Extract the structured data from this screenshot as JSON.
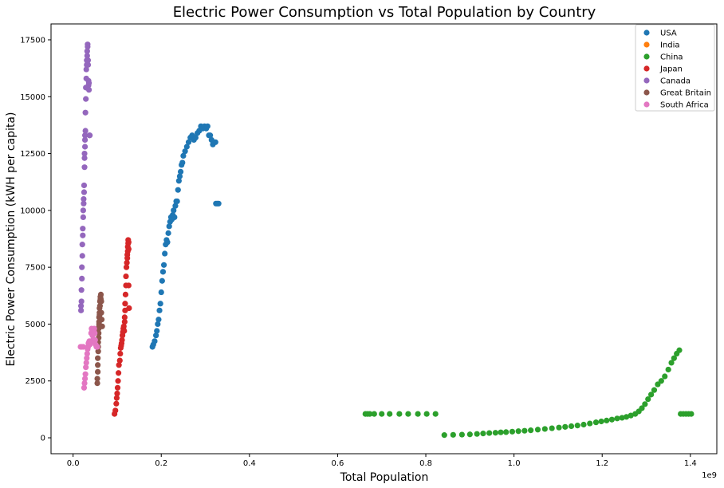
{
  "chart_data": {
    "type": "scatter",
    "title": "Electric Power Consumption vs Total Population by Country",
    "xlabel": "Total Population",
    "ylabel": "Electric Power Consumption (kWH per capita)",
    "x_offset_label": "1e9",
    "xlim": [
      -0.05,
      1.46
    ],
    "ylim": [
      -700,
      18200
    ],
    "xticks": [
      0.0,
      0.2,
      0.4,
      0.6,
      0.8,
      1.0,
      1.2,
      1.4
    ],
    "xtick_labels": [
      "0.0",
      "0.2",
      "0.4",
      "0.6",
      "0.8",
      "1.0",
      "1.2",
      "1.4"
    ],
    "yticks": [
      0,
      2500,
      5000,
      7500,
      10000,
      12500,
      15000,
      17500
    ],
    "ytick_labels": [
      "0",
      "2500",
      "5000",
      "7500",
      "10000",
      "12500",
      "15000",
      "17500"
    ],
    "legend_position": "top-right",
    "grid": false,
    "series": [
      {
        "name": "USA",
        "color": "#1f77b4",
        "points": [
          [
            0.18,
            4000
          ],
          [
            0.182,
            4100
          ],
          [
            0.185,
            4250
          ],
          [
            0.188,
            4500
          ],
          [
            0.19,
            4700
          ],
          [
            0.192,
            5000
          ],
          [
            0.194,
            5200
          ],
          [
            0.196,
            5600
          ],
          [
            0.198,
            5900
          ],
          [
            0.2,
            6400
          ],
          [
            0.202,
            6900
          ],
          [
            0.204,
            7300
          ],
          [
            0.206,
            7600
          ],
          [
            0.208,
            8100
          ],
          [
            0.21,
            8500
          ],
          [
            0.212,
            8700
          ],
          [
            0.214,
            8600
          ],
          [
            0.216,
            9000
          ],
          [
            0.218,
            9300
          ],
          [
            0.22,
            9500
          ],
          [
            0.222,
            9700
          ],
          [
            0.224,
            9600
          ],
          [
            0.226,
            9800
          ],
          [
            0.228,
            10000
          ],
          [
            0.23,
            9700
          ],
          [
            0.232,
            10200
          ],
          [
            0.234,
            10400
          ],
          [
            0.236,
            10400
          ],
          [
            0.238,
            10900
          ],
          [
            0.24,
            11300
          ],
          [
            0.242,
            11500
          ],
          [
            0.244,
            11700
          ],
          [
            0.246,
            12000
          ],
          [
            0.248,
            12100
          ],
          [
            0.25,
            12400
          ],
          [
            0.254,
            12600
          ],
          [
            0.258,
            12800
          ],
          [
            0.262,
            13000
          ],
          [
            0.266,
            13200
          ],
          [
            0.27,
            13300
          ],
          [
            0.274,
            13100
          ],
          [
            0.278,
            13200
          ],
          [
            0.282,
            13400
          ],
          [
            0.286,
            13500
          ],
          [
            0.29,
            13700
          ],
          [
            0.294,
            13600
          ],
          [
            0.298,
            13700
          ],
          [
            0.302,
            13600
          ],
          [
            0.305,
            13700
          ],
          [
            0.308,
            13300
          ],
          [
            0.311,
            13300
          ],
          [
            0.314,
            13100
          ],
          [
            0.317,
            12900
          ],
          [
            0.32,
            13000
          ],
          [
            0.323,
            13000
          ],
          [
            0.324,
            10300
          ],
          [
            0.327,
            10300
          ],
          [
            0.33,
            10300
          ]
        ]
      },
      {
        "name": "India",
        "color": "#ff7f0e",
        "points": []
      },
      {
        "name": "China",
        "color": "#2ca02c",
        "points": [
          [
            0.663,
            1050
          ],
          [
            0.668,
            1050
          ],
          [
            0.673,
            1050
          ],
          [
            0.683,
            1050
          ],
          [
            0.7,
            1050
          ],
          [
            0.718,
            1050
          ],
          [
            0.74,
            1050
          ],
          [
            0.76,
            1050
          ],
          [
            0.782,
            1050
          ],
          [
            0.802,
            1050
          ],
          [
            0.822,
            1050
          ],
          [
            0.842,
            120
          ],
          [
            0.862,
            130
          ],
          [
            0.882,
            140
          ],
          [
            0.9,
            150
          ],
          [
            0.916,
            170
          ],
          [
            0.93,
            190
          ],
          [
            0.944,
            210
          ],
          [
            0.958,
            220
          ],
          [
            0.97,
            240
          ],
          [
            0.982,
            250
          ],
          [
            0.996,
            270
          ],
          [
            1.01,
            290
          ],
          [
            1.024,
            310
          ],
          [
            1.038,
            330
          ],
          [
            1.054,
            360
          ],
          [
            1.07,
            390
          ],
          [
            1.086,
            420
          ],
          [
            1.102,
            450
          ],
          [
            1.116,
            480
          ],
          [
            1.13,
            510
          ],
          [
            1.144,
            540
          ],
          [
            1.158,
            580
          ],
          [
            1.172,
            630
          ],
          [
            1.186,
            680
          ],
          [
            1.198,
            720
          ],
          [
            1.21,
            760
          ],
          [
            1.222,
            800
          ],
          [
            1.234,
            850
          ],
          [
            1.245,
            880
          ],
          [
            1.255,
            920
          ],
          [
            1.265,
            980
          ],
          [
            1.275,
            1050
          ],
          [
            1.283,
            1160
          ],
          [
            1.29,
            1300
          ],
          [
            1.297,
            1480
          ],
          [
            1.304,
            1700
          ],
          [
            1.311,
            1900
          ],
          [
            1.318,
            2100
          ],
          [
            1.326,
            2350
          ],
          [
            1.334,
            2500
          ],
          [
            1.342,
            2700
          ],
          [
            1.35,
            3000
          ],
          [
            1.357,
            3300
          ],
          [
            1.363,
            3500
          ],
          [
            1.369,
            3700
          ],
          [
            1.375,
            3850
          ],
          [
            1.378,
            1050
          ],
          [
            1.384,
            1050
          ],
          [
            1.39,
            1050
          ],
          [
            1.396,
            1050
          ],
          [
            1.402,
            1050
          ]
        ]
      },
      {
        "name": "Japan",
        "color": "#d62728",
        "points": [
          [
            0.094,
            1050
          ],
          [
            0.096,
            1200
          ],
          [
            0.098,
            1500
          ],
          [
            0.099,
            1750
          ],
          [
            0.1,
            1950
          ],
          [
            0.101,
            2200
          ],
          [
            0.102,
            2500
          ],
          [
            0.103,
            2850
          ],
          [
            0.104,
            3200
          ],
          [
            0.106,
            3400
          ],
          [
            0.107,
            3700
          ],
          [
            0.108,
            3950
          ],
          [
            0.109,
            4050
          ],
          [
            0.11,
            4150
          ],
          [
            0.111,
            4300
          ],
          [
            0.112,
            4500
          ],
          [
            0.113,
            4650
          ],
          [
            0.114,
            4800
          ],
          [
            0.115,
            4900
          ],
          [
            0.116,
            4700
          ],
          [
            0.117,
            5100
          ],
          [
            0.117,
            5300
          ],
          [
            0.118,
            5600
          ],
          [
            0.118,
            5900
          ],
          [
            0.119,
            6300
          ],
          [
            0.12,
            6700
          ],
          [
            0.12,
            7100
          ],
          [
            0.121,
            7500
          ],
          [
            0.122,
            7700
          ],
          [
            0.123,
            7900
          ],
          [
            0.123,
            8050
          ],
          [
            0.124,
            8200
          ],
          [
            0.124,
            8400
          ],
          [
            0.125,
            8550
          ],
          [
            0.125,
            8700
          ],
          [
            0.126,
            8600
          ],
          [
            0.126,
            8300
          ],
          [
            0.126,
            6700
          ],
          [
            0.127,
            5700
          ]
        ]
      },
      {
        "name": "Canada",
        "color": "#9467bd",
        "points": [
          [
            0.018,
            5600
          ],
          [
            0.018,
            5800
          ],
          [
            0.019,
            6000
          ],
          [
            0.019,
            6500
          ],
          [
            0.02,
            7000
          ],
          [
            0.02,
            7500
          ],
          [
            0.021,
            8000
          ],
          [
            0.021,
            8500
          ],
          [
            0.022,
            8900
          ],
          [
            0.022,
            9200
          ],
          [
            0.023,
            9700
          ],
          [
            0.023,
            10000
          ],
          [
            0.024,
            10300
          ],
          [
            0.024,
            10500
          ],
          [
            0.025,
            10800
          ],
          [
            0.025,
            11100
          ],
          [
            0.026,
            11900
          ],
          [
            0.026,
            12300
          ],
          [
            0.026,
            12500
          ],
          [
            0.027,
            12800
          ],
          [
            0.027,
            13100
          ],
          [
            0.027,
            13300
          ],
          [
            0.028,
            13500
          ],
          [
            0.028,
            14300
          ],
          [
            0.029,
            14900
          ],
          [
            0.029,
            15400
          ],
          [
            0.03,
            15800
          ],
          [
            0.03,
            16200
          ],
          [
            0.031,
            16400
          ],
          [
            0.031,
            16600
          ],
          [
            0.032,
            16800
          ],
          [
            0.032,
            17000
          ],
          [
            0.033,
            17200
          ],
          [
            0.033,
            17300
          ],
          [
            0.034,
            16400
          ],
          [
            0.034,
            16600
          ],
          [
            0.035,
            15700
          ],
          [
            0.035,
            15500
          ],
          [
            0.036,
            15300
          ],
          [
            0.036,
            15600
          ],
          [
            0.037,
            13300
          ],
          [
            0.038,
            13300
          ]
        ]
      },
      {
        "name": "Great Britain",
        "color": "#8c564b",
        "points": [
          [
            0.055,
            2400
          ],
          [
            0.055,
            2600
          ],
          [
            0.056,
            2900
          ],
          [
            0.056,
            3200
          ],
          [
            0.056,
            3500
          ],
          [
            0.057,
            3800
          ],
          [
            0.057,
            4000
          ],
          [
            0.057,
            4200
          ],
          [
            0.058,
            4400
          ],
          [
            0.058,
            4600
          ],
          [
            0.058,
            4800
          ],
          [
            0.059,
            4900
          ],
          [
            0.059,
            5000
          ],
          [
            0.059,
            5100
          ],
          [
            0.059,
            5300
          ],
          [
            0.06,
            5400
          ],
          [
            0.06,
            5500
          ],
          [
            0.06,
            5700
          ],
          [
            0.061,
            5800
          ],
          [
            0.061,
            6000
          ],
          [
            0.062,
            6100
          ],
          [
            0.062,
            6200
          ],
          [
            0.063,
            6300
          ],
          [
            0.063,
            6100
          ],
          [
            0.064,
            6000
          ],
          [
            0.064,
            5500
          ],
          [
            0.065,
            5200
          ],
          [
            0.066,
            4900
          ]
        ]
      },
      {
        "name": "South Africa",
        "color": "#e377c2",
        "points": [
          [
            0.017,
            4000
          ],
          [
            0.02,
            4000
          ],
          [
            0.023,
            4000
          ],
          [
            0.025,
            2200
          ],
          [
            0.026,
            2400
          ],
          [
            0.027,
            2600
          ],
          [
            0.028,
            2800
          ],
          [
            0.029,
            3100
          ],
          [
            0.03,
            3300
          ],
          [
            0.031,
            3500
          ],
          [
            0.032,
            3700
          ],
          [
            0.033,
            3900
          ],
          [
            0.034,
            4000
          ],
          [
            0.035,
            4150
          ],
          [
            0.036,
            4200
          ],
          [
            0.037,
            4250
          ],
          [
            0.038,
            4100
          ],
          [
            0.04,
            4200
          ],
          [
            0.041,
            4600
          ],
          [
            0.042,
            4800
          ],
          [
            0.043,
            4700
          ],
          [
            0.044,
            4500
          ],
          [
            0.045,
            4300
          ],
          [
            0.046,
            4550
          ],
          [
            0.047,
            4700
          ],
          [
            0.048,
            4800
          ],
          [
            0.049,
            4600
          ],
          [
            0.05,
            4300
          ],
          [
            0.051,
            4100
          ],
          [
            0.053,
            4000
          ],
          [
            0.055,
            4000
          ]
        ]
      }
    ]
  }
}
